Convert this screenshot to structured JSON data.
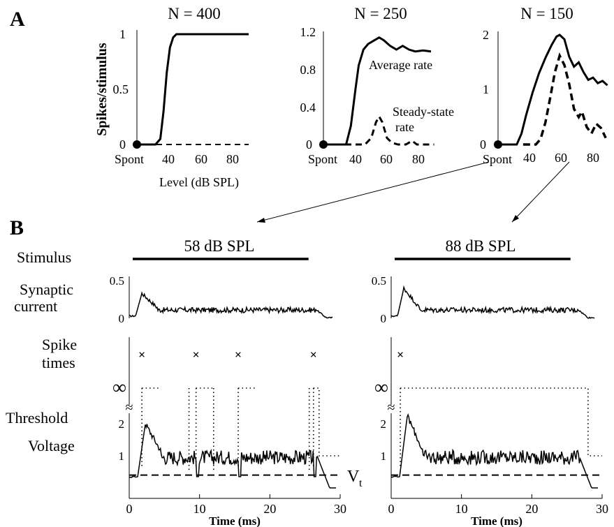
{
  "panel_a": {
    "label": "A",
    "y_title": "Spikes/stimulus",
    "x_title": "Level (dB SPL)",
    "spont_label": "Spont",
    "plots": [
      {
        "title": "N = 400",
        "ylim": [
          0,
          1
        ],
        "yticks": [
          "0",
          "0.5",
          "1"
        ],
        "xticks": [
          "40",
          "60",
          "80"
        ],
        "series": [
          {
            "style": "solid",
            "points": [
              [
                20,
                0
              ],
              [
                32,
                0
              ],
              [
                35,
                0.05
              ],
              [
                37,
                0.3
              ],
              [
                39,
                0.65
              ],
              [
                41,
                0.88
              ],
              [
                43,
                0.97
              ],
              [
                45,
                1
              ],
              [
                90,
                1
              ]
            ]
          },
          {
            "style": "dashed",
            "points": [
              [
                20,
                0
              ],
              [
                90,
                0
              ]
            ]
          }
        ]
      },
      {
        "title": "N = 250",
        "ylim": [
          0,
          1.2
        ],
        "yticks": [
          "0",
          "0.4",
          "0.8",
          "1.2"
        ],
        "xticks": [
          "40",
          "60",
          "80"
        ],
        "annotations": [
          "Average rate",
          "Steady-state",
          "rate"
        ],
        "series": [
          {
            "name": "Average rate",
            "style": "solid",
            "points": [
              [
                20,
                0
              ],
              [
                34,
                0
              ],
              [
                37,
                0.2
              ],
              [
                40,
                0.6
              ],
              [
                42,
                0.85
              ],
              [
                45,
                1.02
              ],
              [
                48,
                1.08
              ],
              [
                52,
                1.12
              ],
              [
                55,
                1.15
              ],
              [
                58,
                1.12
              ],
              [
                62,
                1.06
              ],
              [
                66,
                1.02
              ],
              [
                70,
                1.06
              ],
              [
                74,
                1.02
              ],
              [
                78,
                1
              ],
              [
                83,
                1.01
              ],
              [
                88,
                1
              ]
            ]
          },
          {
            "name": "Steady-state rate",
            "style": "dashed",
            "points": [
              [
                20,
                0
              ],
              [
                46,
                0
              ],
              [
                50,
                0.07
              ],
              [
                53,
                0.24
              ],
              [
                55,
                0.3
              ],
              [
                57,
                0.24
              ],
              [
                60,
                0.07
              ],
              [
                63,
                0.02
              ],
              [
                67,
                0
              ],
              [
                72,
                0
              ],
              [
                76,
                0.04
              ],
              [
                79,
                0
              ],
              [
                90,
                0
              ]
            ]
          }
        ]
      },
      {
        "title": "N = 150",
        "ylim": [
          0,
          2
        ],
        "yticks": [
          "0",
          "1",
          "2"
        ],
        "xticks": [
          "40",
          "60",
          "80"
        ],
        "series": [
          {
            "style": "solid",
            "points": [
              [
                20,
                0
              ],
              [
                32,
                0
              ],
              [
                35,
                0.2
              ],
              [
                38,
                0.55
              ],
              [
                42,
                0.95
              ],
              [
                46,
                1.3
              ],
              [
                50,
                1.58
              ],
              [
                54,
                1.82
              ],
              [
                57,
                1.97
              ],
              [
                59,
                2
              ],
              [
                62,
                1.92
              ],
              [
                65,
                1.6
              ],
              [
                68,
                1.42
              ],
              [
                71,
                1.5
              ],
              [
                74,
                1.32
              ],
              [
                77,
                1.18
              ],
              [
                80,
                1.22
              ],
              [
                83,
                1.12
              ],
              [
                86,
                1.16
              ],
              [
                89,
                1.08
              ]
            ]
          },
          {
            "style": "dashed",
            "points": [
              [
                36,
                0
              ],
              [
                44,
                0
              ],
              [
                47,
                0.1
              ],
              [
                50,
                0.4
              ],
              [
                53,
                0.85
              ],
              [
                56,
                1.32
              ],
              [
                59,
                1.62
              ],
              [
                62,
                1.45
              ],
              [
                65,
                1.1
              ],
              [
                68,
                0.65
              ],
              [
                71,
                0.5
              ],
              [
                73,
                0.6
              ],
              [
                76,
                0.32
              ],
              [
                79,
                0.2
              ],
              [
                82,
                0.38
              ],
              [
                85,
                0.3
              ],
              [
                88,
                0.12
              ]
            ]
          }
        ]
      }
    ]
  },
  "panel_b": {
    "label": "B",
    "row_labels": [
      "Stimulus",
      "Synaptic",
      "current",
      "Spike",
      "times",
      "Threshold",
      "Voltage"
    ],
    "x_title": "Time (ms)",
    "xticks": [
      "0",
      "10",
      "20",
      "30"
    ],
    "current_ticks": [
      "0",
      "0.5"
    ],
    "voltage_ticks": [
      "1",
      "2"
    ],
    "infinity_symbol": "∞",
    "break_symbol": "≈",
    "spike_marker": "×",
    "vt_label": "V",
    "vt_subscript": "t",
    "vt_level": 0.4,
    "columns": [
      {
        "title": "58 dB SPL",
        "spike_times_ms": [
          1.8,
          9.5,
          15.5,
          26.2
        ],
        "stimulus_ms": [
          0.5,
          25.5
        ]
      },
      {
        "title": "88 dB SPL",
        "spike_times_ms": [
          1.3
        ],
        "stimulus_ms": [
          0.5,
          25.5
        ]
      }
    ]
  }
}
